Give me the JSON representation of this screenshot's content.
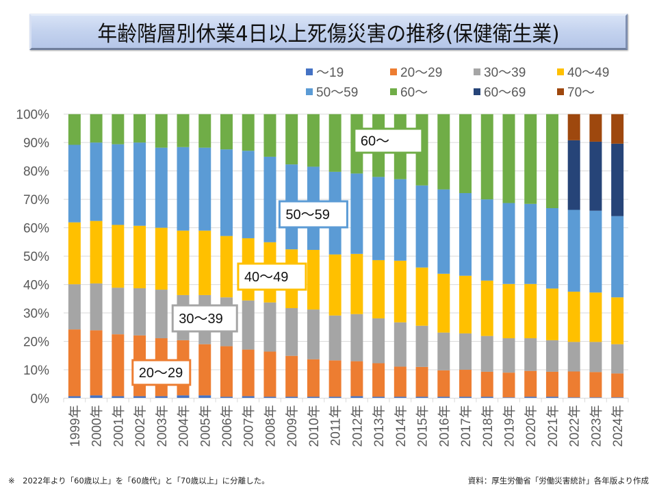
{
  "title": "年齢階層別休業4日以上死傷災害の推移(保健衛生業)",
  "footnote": "※　2022年より「60歳以上」を「60歳代」と「70歳以上」に分離した。",
  "source": "資料：厚生労働省「労働災害統計」各年版より作成",
  "chart_data": {
    "type": "bar",
    "stacked": true,
    "percent_stacked": true,
    "title": "年齢階層別休業4日以上死傷災害の推移(保健衛生業)",
    "xlabel": "",
    "ylabel": "",
    "ylim": [
      0,
      100
    ],
    "y_ticks": [
      "0%",
      "10%",
      "20%",
      "30%",
      "40%",
      "50%",
      "60%",
      "70%",
      "80%",
      "90%",
      "100%"
    ],
    "grid": true,
    "legend_position": "top-right",
    "categories": [
      "1999年",
      "2000年",
      "2001年",
      "2002年",
      "2003年",
      "2004年",
      "2005年",
      "2006年",
      "2007年",
      "2008年",
      "2009年",
      "2010年",
      "2011年",
      "2012年",
      "2013年",
      "2014年",
      "2015年",
      "2016年",
      "2017年",
      "2018年",
      "2019年",
      "2020年",
      "2021年",
      "2022年",
      "2023年",
      "2024年"
    ],
    "series": [
      {
        "name": "〜19",
        "color": "#4472c4",
        "values": [
          0.7,
          1.0,
          0.7,
          0.7,
          0.7,
          1.0,
          1.0,
          0.5,
          0.7,
          0.5,
          0.5,
          0.5,
          0.5,
          0.7,
          0.5,
          0.5,
          0.5,
          0.5,
          0.5,
          0.5,
          0.3,
          0.5,
          0.5,
          0.3,
          0.3,
          0.3
        ]
      },
      {
        "name": "20〜29",
        "color": "#ed7d31",
        "values": [
          23.5,
          22.9,
          21.8,
          21.4,
          20.4,
          19.4,
          18.0,
          17.8,
          16.4,
          15.9,
          14.4,
          13.2,
          12.8,
          12.3,
          11.8,
          10.6,
          10.5,
          9.3,
          9.5,
          8.8,
          8.7,
          9.1,
          8.8,
          9.1,
          8.9,
          8.4
        ]
      },
      {
        "name": "30〜39",
        "color": "#a5a5a5",
        "values": [
          15.9,
          16.5,
          16.4,
          16.6,
          17.1,
          15.9,
          17.3,
          17.2,
          17.3,
          17.3,
          16.8,
          17.5,
          15.8,
          16.6,
          15.8,
          15.6,
          14.5,
          13.3,
          12.8,
          12.6,
          12.1,
          11.5,
          11.1,
          10.4,
          10.6,
          10.3
        ]
      },
      {
        "name": "40〜49",
        "color": "#ffc000",
        "values": [
          21.8,
          22.0,
          22.1,
          22.0,
          21.8,
          22.7,
          22.7,
          21.6,
          21.9,
          21.2,
          20.7,
          21.0,
          21.5,
          21.2,
          20.5,
          21.7,
          20.5,
          20.7,
          20.3,
          19.5,
          19.1,
          19.1,
          18.2,
          17.7,
          17.4,
          16.5
        ]
      },
      {
        "name": "50〜59",
        "color": "#5b9bd5",
        "values": [
          27.3,
          27.6,
          28.4,
          29.3,
          28.2,
          29.4,
          29.2,
          30.5,
          30.8,
          30.1,
          29.9,
          29.3,
          29.1,
          28.3,
          29.3,
          28.7,
          28.9,
          29.7,
          29.1,
          28.6,
          28.5,
          28.2,
          28.3,
          28.8,
          28.8,
          28.6
        ]
      },
      {
        "name": "60〜",
        "color": "#70ad47",
        "values": [
          10.8,
          10.0,
          10.6,
          10.0,
          11.8,
          11.6,
          11.8,
          12.4,
          12.9,
          15.0,
          17.7,
          18.5,
          20.3,
          20.9,
          22.1,
          22.9,
          25.1,
          26.5,
          27.8,
          30.0,
          31.3,
          31.6,
          33.1,
          null,
          null,
          null
        ]
      },
      {
        "name": "60〜69",
        "color": "#264478",
        "values": [
          null,
          null,
          null,
          null,
          null,
          null,
          null,
          null,
          null,
          null,
          null,
          null,
          null,
          null,
          null,
          null,
          null,
          null,
          null,
          null,
          null,
          null,
          null,
          24.5,
          24.3,
          25.5
        ]
      },
      {
        "name": "70〜",
        "color": "#9e480e",
        "values": [
          null,
          null,
          null,
          null,
          null,
          null,
          null,
          null,
          null,
          null,
          null,
          null,
          null,
          null,
          null,
          null,
          null,
          null,
          null,
          null,
          null,
          null,
          null,
          9.2,
          9.7,
          10.4
        ]
      }
    ],
    "legend": [
      "〜19",
      "20〜29",
      "30〜39",
      "40〜49",
      "50〜59",
      "60〜",
      "60〜69",
      "70〜"
    ],
    "annotations": [
      {
        "text": "60〜",
        "series": "60〜",
        "category": "2012年"
      },
      {
        "text": "50〜59",
        "series": "50〜59",
        "category": "2010年"
      },
      {
        "text": "40〜49",
        "series": "40〜49",
        "category": "2008年"
      },
      {
        "text": "30〜39",
        "series": "30〜39",
        "category": "2005年"
      },
      {
        "text": "20〜29",
        "series": "20〜29",
        "category": "2003年"
      }
    ]
  }
}
